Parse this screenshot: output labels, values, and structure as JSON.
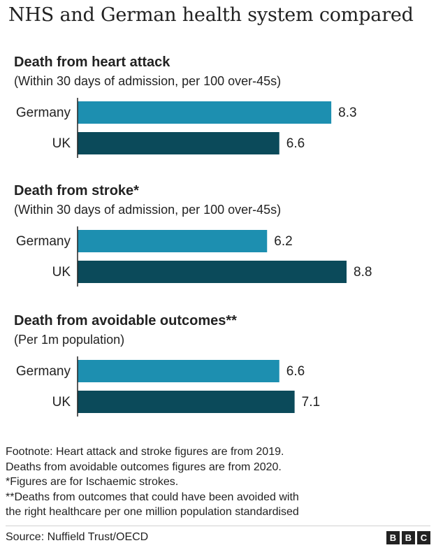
{
  "title": "NHS and German health system compared",
  "colors": {
    "germany": "#1d8fb0",
    "uk": "#0b4a5a",
    "axis": "#222222"
  },
  "chart_data": [
    {
      "type": "bar",
      "orientation": "horizontal",
      "title": "Death from heart attack",
      "subtitle": "(Within 30 days of admission, per 100 over-45s)",
      "categories": [
        "Germany",
        "UK"
      ],
      "values": [
        8.3,
        6.6
      ],
      "value_labels": [
        "8.3",
        "6.6"
      ],
      "xlim": [
        0,
        8.8
      ]
    },
    {
      "type": "bar",
      "orientation": "horizontal",
      "title": "Death from stroke*",
      "subtitle": "(Within 30 days of admission, per 100 over-45s)",
      "categories": [
        "Germany",
        "UK"
      ],
      "values": [
        6.2,
        8.8
      ],
      "value_labels": [
        "6.2",
        "8.8"
      ],
      "xlim": [
        0,
        8.8
      ]
    },
    {
      "type": "bar",
      "orientation": "horizontal",
      "title": "Death from avoidable outcomes**",
      "subtitle": "(Per 1m population)",
      "categories": [
        "Germany",
        "UK"
      ],
      "values": [
        6.6,
        7.1
      ],
      "value_labels": [
        "6.6",
        "7.1"
      ],
      "xlim": [
        0,
        8.8
      ]
    }
  ],
  "footnotes": [
    "Footnote: Heart attack and stroke figures are from 2019.",
    "Deaths from avoidable outcomes figures are from 2020.",
    "*Figures are for Ischaemic strokes.",
    "**Deaths from outcomes that could have been avoided with",
    "the right healthcare per one million population standardised"
  ],
  "source": "Source: Nuffield Trust/OECD",
  "logo": [
    "B",
    "B",
    "C"
  ]
}
